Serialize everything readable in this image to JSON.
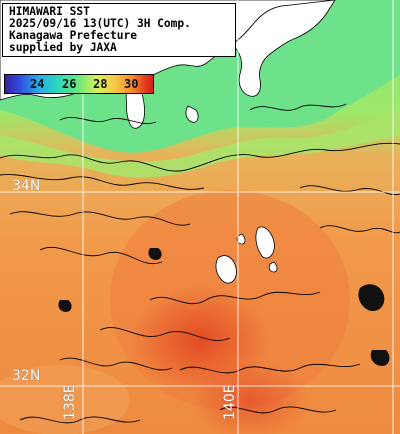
{
  "title_box": {
    "line1": "HIMAWARI SST",
    "line2": "2025/09/16 13(UTC) 3H Comp.",
    "line3": "Kanagawa Prefecture",
    "line4": "supplied by JAXA"
  },
  "color_scale": {
    "labels": [
      "24",
      "26",
      "28",
      "30"
    ]
  },
  "grid": {
    "lat_labels": [
      "34N",
      "32N"
    ],
    "lon_labels": [
      "138E",
      "140E"
    ]
  },
  "colors": {
    "land": "#ffffff",
    "sea_cool": "#6de07a",
    "sea_warm": "#f0964a",
    "sea_hot": "#e0442a",
    "gridline": "#ffffff",
    "contour": "#000000"
  }
}
